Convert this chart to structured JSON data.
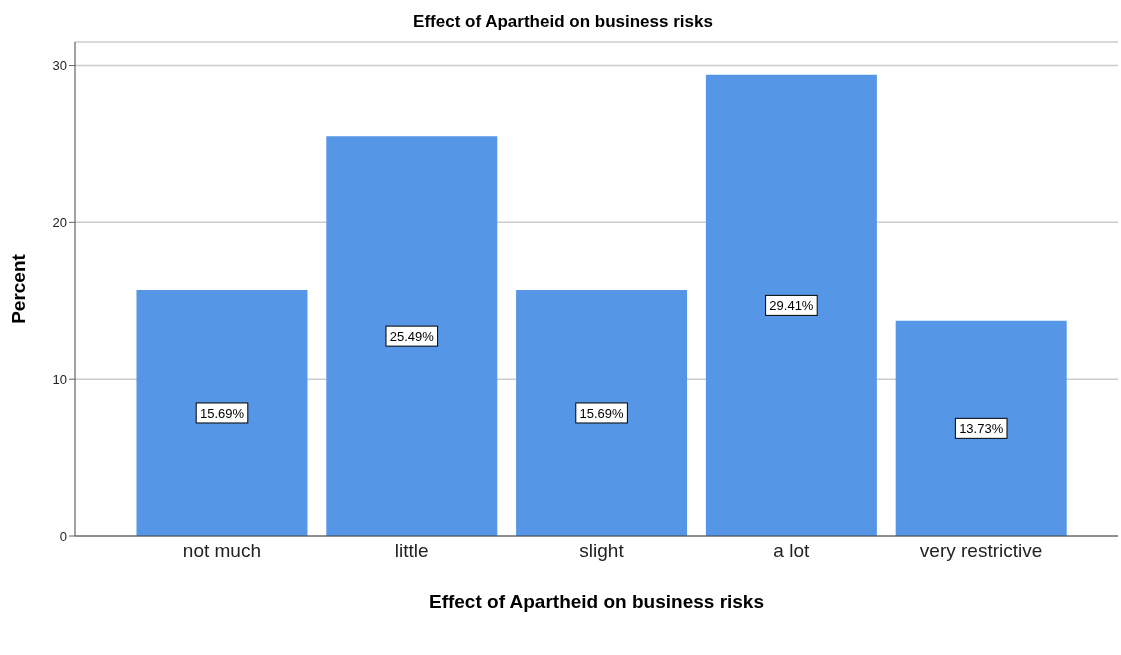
{
  "chart_data": {
    "type": "bar",
    "title": "Effect of Apartheid on business risks",
    "xlabel": "Effect of Apartheid on business risks",
    "ylabel": "Percent",
    "categories": [
      "not much",
      "little",
      "slight",
      "a lot",
      "very restrictive"
    ],
    "values": [
      15.69,
      25.49,
      15.69,
      29.41,
      13.73
    ],
    "value_labels": [
      "15.69%",
      "25.49%",
      "15.69%",
      "29.41%",
      "13.73%"
    ],
    "color": "#5596e6",
    "ylim": [
      0,
      31.5
    ],
    "yticks": [
      0,
      10,
      20,
      30
    ],
    "grid": "y"
  }
}
